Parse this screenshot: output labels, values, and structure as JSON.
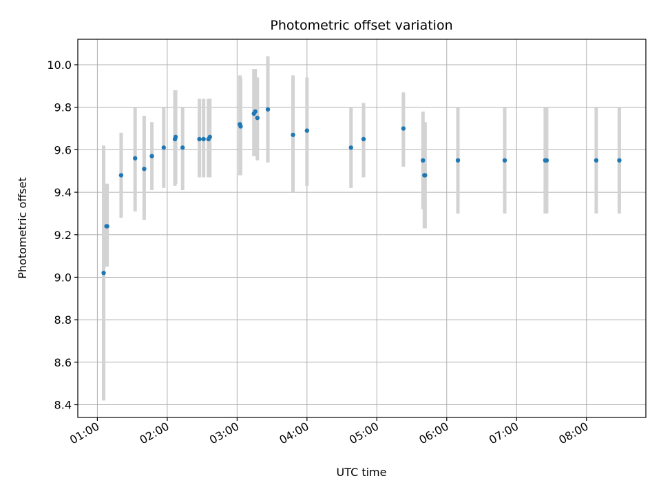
{
  "chart_data": {
    "type": "scatter",
    "title": "Photometric offset variation",
    "xlabel": "UTC time",
    "ylabel": "Photometric offset",
    "x_unit": "hours (UTC)",
    "xlim": [
      0.72,
      8.85
    ],
    "ylim": [
      8.34,
      10.12
    ],
    "xticks": [
      1,
      2,
      3,
      4,
      5,
      6,
      7,
      8
    ],
    "xtick_labels": [
      "01:00",
      "02:00",
      "03:00",
      "04:00",
      "05:00",
      "06:00",
      "07:00",
      "08:00"
    ],
    "yticks": [
      8.4,
      8.6,
      8.8,
      9.0,
      9.2,
      9.4,
      9.6,
      9.8,
      10.0
    ],
    "ytick_labels": [
      "8.4",
      "8.6",
      "8.8",
      "9.0",
      "9.2",
      "9.4",
      "9.6",
      "9.8",
      "10.0"
    ],
    "grid": true,
    "marker_color": "#1f77b4",
    "errorbar_color": "#d3d3d3",
    "points": [
      {
        "x": 1.09,
        "y": 9.02,
        "lo": 8.42,
        "hi": 9.62
      },
      {
        "x": 1.13,
        "y": 9.24,
        "lo": 9.05,
        "hi": 9.44
      },
      {
        "x": 1.14,
        "y": 9.24,
        "lo": 9.05,
        "hi": 9.44
      },
      {
        "x": 1.34,
        "y": 9.48,
        "lo": 9.28,
        "hi": 9.68
      },
      {
        "x": 1.54,
        "y": 9.56,
        "lo": 9.31,
        "hi": 9.8
      },
      {
        "x": 1.67,
        "y": 9.51,
        "lo": 9.27,
        "hi": 9.76
      },
      {
        "x": 1.78,
        "y": 9.57,
        "lo": 9.41,
        "hi": 9.73
      },
      {
        "x": 1.95,
        "y": 9.61,
        "lo": 9.42,
        "hi": 9.8
      },
      {
        "x": 2.11,
        "y": 9.65,
        "lo": 9.43,
        "hi": 9.88
      },
      {
        "x": 2.12,
        "y": 9.66,
        "lo": 9.44,
        "hi": 9.88
      },
      {
        "x": 2.22,
        "y": 9.61,
        "lo": 9.41,
        "hi": 9.8
      },
      {
        "x": 2.46,
        "y": 9.65,
        "lo": 9.47,
        "hi": 9.84
      },
      {
        "x": 2.52,
        "y": 9.65,
        "lo": 9.47,
        "hi": 9.84
      },
      {
        "x": 2.59,
        "y": 9.65,
        "lo": 9.47,
        "hi": 9.84
      },
      {
        "x": 2.61,
        "y": 9.66,
        "lo": 9.47,
        "hi": 9.84
      },
      {
        "x": 3.04,
        "y": 9.72,
        "lo": 9.48,
        "hi": 9.95
      },
      {
        "x": 3.05,
        "y": 9.71,
        "lo": 9.48,
        "hi": 9.94
      },
      {
        "x": 3.24,
        "y": 9.77,
        "lo": 9.57,
        "hi": 9.98
      },
      {
        "x": 3.26,
        "y": 9.78,
        "lo": 9.57,
        "hi": 9.98
      },
      {
        "x": 3.29,
        "y": 9.75,
        "lo": 9.55,
        "hi": 9.94
      },
      {
        "x": 3.44,
        "y": 9.79,
        "lo": 9.54,
        "hi": 10.04
      },
      {
        "x": 3.8,
        "y": 9.67,
        "lo": 9.4,
        "hi": 9.95
      },
      {
        "x": 4.0,
        "y": 9.69,
        "lo": 9.43,
        "hi": 9.94
      },
      {
        "x": 4.63,
        "y": 9.61,
        "lo": 9.42,
        "hi": 9.8
      },
      {
        "x": 4.81,
        "y": 9.65,
        "lo": 9.47,
        "hi": 9.82
      },
      {
        "x": 5.38,
        "y": 9.7,
        "lo": 9.52,
        "hi": 9.87
      },
      {
        "x": 5.66,
        "y": 9.55,
        "lo": 9.32,
        "hi": 9.78
      },
      {
        "x": 5.68,
        "y": 9.48,
        "lo": 9.23,
        "hi": 9.73
      },
      {
        "x": 5.69,
        "y": 9.48,
        "lo": 9.23,
        "hi": 9.73
      },
      {
        "x": 6.16,
        "y": 9.55,
        "lo": 9.3,
        "hi": 9.8
      },
      {
        "x": 6.83,
        "y": 9.55,
        "lo": 9.3,
        "hi": 9.8
      },
      {
        "x": 7.41,
        "y": 9.55,
        "lo": 9.3,
        "hi": 9.8
      },
      {
        "x": 7.43,
        "y": 9.55,
        "lo": 9.3,
        "hi": 9.8
      },
      {
        "x": 8.14,
        "y": 9.55,
        "lo": 9.3,
        "hi": 9.8
      },
      {
        "x": 8.47,
        "y": 9.55,
        "lo": 9.3,
        "hi": 9.8
      }
    ]
  }
}
